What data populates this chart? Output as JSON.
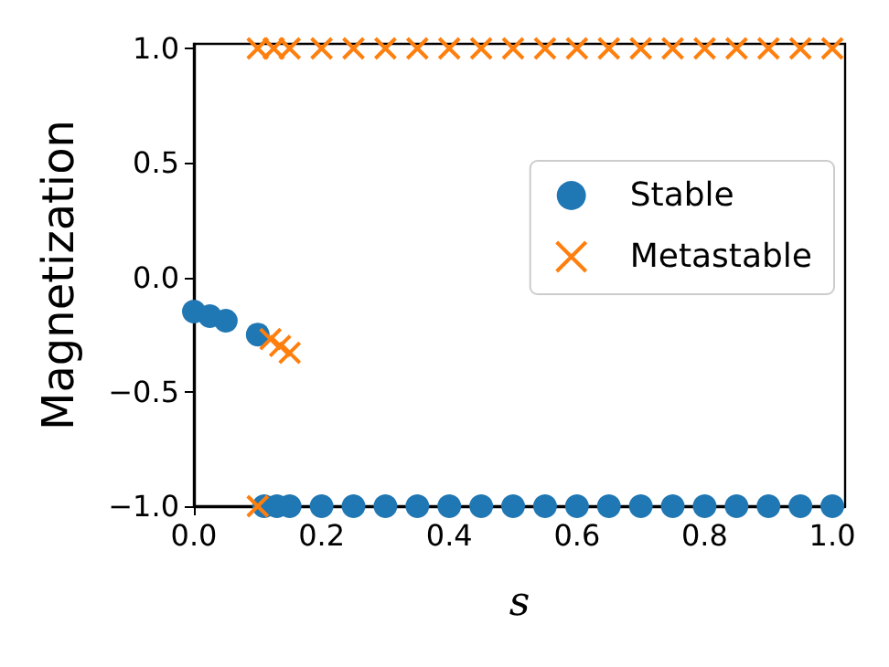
{
  "chart_data": {
    "type": "scatter",
    "xlabel": "s",
    "ylabel": "Magnetization",
    "xlim": [
      0,
      1.02
    ],
    "ylim": [
      -1,
      1.02
    ],
    "xticks": [
      {
        "value": 0,
        "label": "0.0"
      },
      0.2,
      0.4,
      0.6,
      0.8,
      {
        "value": 1,
        "label": "1.0"
      }
    ],
    "yticks": [
      {
        "value": -1,
        "label": "−1.0"
      },
      {
        "value": -0.5,
        "label": "−0.5"
      },
      {
        "value": 0,
        "label": "0.0"
      },
      0.5,
      {
        "value": 1,
        "label": "1.0"
      }
    ],
    "grid": false,
    "legend": "right",
    "series": [
      {
        "name": "Stable",
        "color": "#1f77b4",
        "marker": "circle",
        "x": [
          0,
          0.025,
          0.05,
          0.1,
          0.11,
          0.13,
          0.15,
          0.2,
          0.25,
          0.3,
          0.35,
          0.4,
          0.45,
          0.5,
          0.55,
          0.6,
          0.65,
          0.7,
          0.75,
          0.8,
          0.85,
          0.9,
          0.95,
          1.0
        ],
        "values": [
          -0.15,
          -0.17,
          -0.19,
          -0.25,
          -1,
          -1,
          -1,
          -1,
          -1,
          -1,
          -1,
          -1,
          -1,
          -1,
          -1,
          -1,
          -1,
          -1,
          -1,
          -1,
          -1,
          -1,
          -1,
          -1
        ]
      },
      {
        "name": "Metastable",
        "color": "#ff7f0e",
        "marker": "cross",
        "x": [
          0.1,
          0.1,
          0.125,
          0.15,
          0.2,
          0.25,
          0.3,
          0.35,
          0.4,
          0.45,
          0.5,
          0.55,
          0.6,
          0.65,
          0.7,
          0.75,
          0.8,
          0.85,
          0.9,
          0.95,
          1.0,
          0.12,
          0.135,
          0.15
        ],
        "values": [
          -1,
          1,
          1,
          1,
          1,
          1,
          1,
          1,
          1,
          1,
          1,
          1,
          1,
          1,
          1,
          1,
          1,
          1,
          1,
          1,
          1,
          -0.27,
          -0.3,
          -0.33
        ]
      }
    ]
  }
}
